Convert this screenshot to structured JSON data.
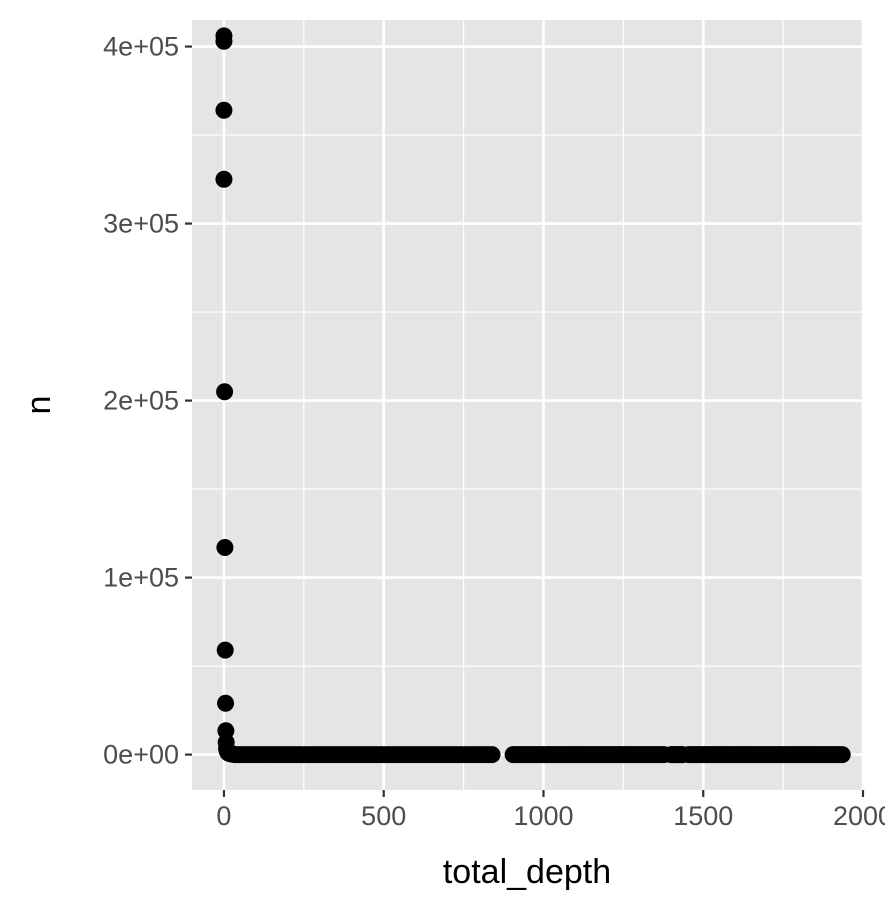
{
  "chart_data": {
    "type": "scatter",
    "title": "",
    "xlabel": "total_depth",
    "ylabel": "n",
    "xlim": [
      -100,
      2000
    ],
    "ylim": [
      -20000,
      415000
    ],
    "x_ticks": [
      0,
      500,
      1000,
      1500,
      2000
    ],
    "x_tick_labels": [
      "0",
      "500",
      "1000",
      "1500",
      "2000"
    ],
    "y_ticks": [
      0,
      100000,
      200000,
      300000,
      400000
    ],
    "y_tick_labels": [
      "0e+00",
      "1e+05",
      "2e+05",
      "3e+05",
      "4e+05"
    ],
    "grid": true,
    "colors": {
      "panel": "#e5e5e5",
      "grid": "#ffffff",
      "point": "#000000",
      "tick": "#333333"
    },
    "points_high": [
      [
        0,
        406000
      ],
      [
        0,
        403000
      ],
      [
        0,
        364000
      ],
      [
        0,
        325000
      ],
      [
        2,
        205000
      ],
      [
        3,
        117000
      ],
      [
        4,
        59000
      ],
      [
        5,
        29000
      ],
      [
        6,
        13500
      ],
      [
        7,
        7000
      ],
      [
        8,
        3500
      ],
      [
        10,
        2000
      ],
      [
        12,
        1200
      ],
      [
        15,
        800
      ],
      [
        20,
        500
      ],
      [
        25,
        300
      ],
      [
        30,
        200
      ]
    ],
    "low_clusters": [
      [
        35,
        850,
        12
      ],
      [
        905,
        1380,
        8
      ],
      [
        1400,
        1435,
        5
      ],
      [
        1455,
        1935,
        8
      ]
    ]
  }
}
